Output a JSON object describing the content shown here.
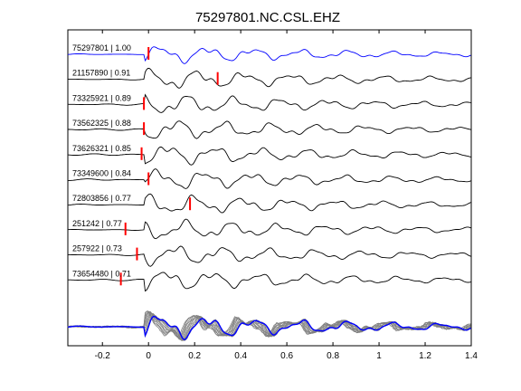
{
  "chart_data": {
    "type": "line",
    "title": "75297801.NC.CSL.EHZ",
    "xlabel": "",
    "ylabel": "",
    "xlim": [
      -0.35,
      1.4
    ],
    "xticks": [
      "-0.2",
      "0",
      "0.2",
      "0.4",
      "0.6",
      "0.8",
      "1",
      "1.2",
      "1.4"
    ],
    "xtick_values": [
      -0.2,
      0,
      0.2,
      0.4,
      0.6,
      0.8,
      1.0,
      1.2,
      1.4
    ],
    "grid": false,
    "series": [
      {
        "name": "75297801 | 1.00",
        "color": "#0000ff",
        "pick": 0.0
      },
      {
        "name": "21157890 | 0.91",
        "color": "#000000",
        "pick": 0.3
      },
      {
        "name": "73325921 | 0.89",
        "color": "#000000",
        "pick": -0.02
      },
      {
        "name": "73562325 | 0.88",
        "color": "#000000",
        "pick": -0.02
      },
      {
        "name": "73626321 | 0.85",
        "color": "#000000",
        "pick": -0.03
      },
      {
        "name": "73349600 | 0.84",
        "color": "#000000",
        "pick": 0.0
      },
      {
        "name": "72803856 | 0.77",
        "color": "#000000",
        "pick": 0.18
      },
      {
        "name": "251242 | 0.77",
        "color": "#000000",
        "pick": -0.1
      },
      {
        "name": "257922 | 0.73",
        "color": "#000000",
        "pick": -0.05
      },
      {
        "name": "73654480 | 0.71",
        "color": "#000000",
        "pick": -0.12
      }
    ],
    "stack": {
      "description_color_overlay": "#808080",
      "reference_color": "#0000ff"
    },
    "pick_color": "#ff0000"
  }
}
